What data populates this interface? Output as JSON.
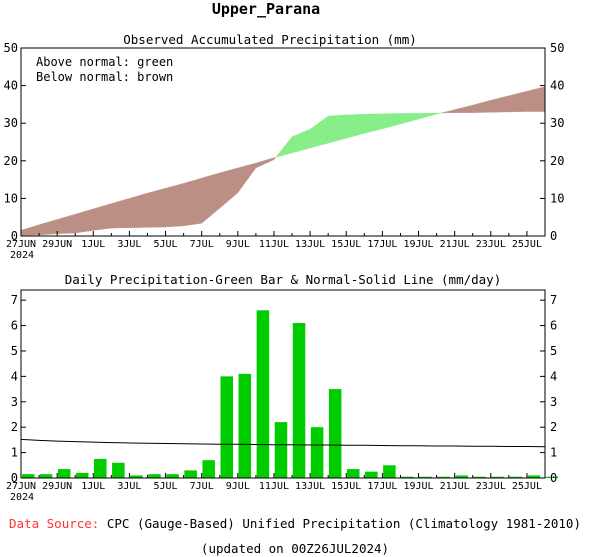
{
  "page": {
    "title": "Upper_Parana",
    "footer_source_label": "Data Source:",
    "footer_source_text": "CPC (Gauge-Based) Unified Precipitation (Climatology 1981-2010)",
    "footer_updated": "(updated on 00Z26JUL2024)"
  },
  "colors": {
    "above_normal": "#88ee88",
    "below_normal": "#bc8f84",
    "bars": "#00cc00",
    "source_label": "#ff3333"
  },
  "chart_data": [
    {
      "type": "area",
      "title": "Observed Accumulated Precipitation (mm)",
      "legend": [
        "Above normal: green",
        "Below normal: brown"
      ],
      "legend_placement": "top-left",
      "x_tick_labels": [
        "27JUN",
        "29JUN",
        "1JUL",
        "3JUL",
        "5JUL",
        "7JUL",
        "9JUL",
        "11JUL",
        "13JUL",
        "15JUL",
        "17JUL",
        "19JUL",
        "21JUL",
        "23JUL",
        "25JUL"
      ],
      "x_year_label": "2024",
      "ylim": [
        0,
        50
      ],
      "y_ticks": [
        0,
        10,
        20,
        30,
        40,
        50
      ],
      "dates": [
        "27JUN",
        "28JUN",
        "29JUN",
        "30JUN",
        "1JUL",
        "2JUL",
        "3JUL",
        "4JUL",
        "5JUL",
        "6JUL",
        "7JUL",
        "8JUL",
        "9JUL",
        "10JUL",
        "11JUL",
        "12JUL",
        "13JUL",
        "14JUL",
        "15JUL",
        "16JUL",
        "17JUL",
        "18JUL",
        "19JUL",
        "20JUL",
        "21JUL",
        "22JUL",
        "23JUL",
        "24JUL",
        "25JUL",
        "26JUL"
      ],
      "series": [
        {
          "name": "Observed",
          "values": [
            0.2,
            0.3,
            0.6,
            0.8,
            1.5,
            2.1,
            2.2,
            2.3,
            2.4,
            2.7,
            3.4,
            7.4,
            11.5,
            18.1,
            20.3,
            26.4,
            28.4,
            31.9,
            32.2,
            32.4,
            32.5,
            32.6,
            32.6,
            32.7,
            32.8,
            32.8,
            32.9,
            33.0,
            33.1,
            33.1
          ]
        },
        {
          "name": "Normal",
          "values": [
            1.5,
            3.0,
            4.4,
            5.8,
            7.2,
            8.6,
            10.0,
            11.4,
            12.7,
            14.0,
            15.4,
            16.8,
            18.1,
            19.4,
            20.8,
            22.1,
            23.4,
            24.7,
            26.0,
            27.3,
            28.5,
            29.8,
            31.1,
            32.4,
            33.6,
            34.8,
            36.1,
            37.3,
            38.5,
            39.7
          ]
        }
      ]
    },
    {
      "type": "bar",
      "title": "Daily Precipitation-Green Bar & Normal-Solid Line (mm/day)",
      "x_tick_labels": [
        "27JUN",
        "29JUN",
        "1JUL",
        "3JUL",
        "5JUL",
        "7JUL",
        "9JUL",
        "11JUL",
        "13JUL",
        "15JUL",
        "17JUL",
        "19JUL",
        "21JUL",
        "23JUL",
        "25JUL"
      ],
      "x_year_label": "2024",
      "ylim": [
        0,
        7.4
      ],
      "y_ticks": [
        0,
        1,
        2,
        3,
        4,
        5,
        6,
        7
      ],
      "categories": [
        "27JUN",
        "28JUN",
        "29JUN",
        "30JUN",
        "1JUL",
        "2JUL",
        "3JUL",
        "4JUL",
        "5JUL",
        "6JUL",
        "7JUL",
        "8JUL",
        "9JUL",
        "10JUL",
        "11JUL",
        "12JUL",
        "13JUL",
        "14JUL",
        "15JUL",
        "16JUL",
        "17JUL",
        "18JUL",
        "19JUL",
        "20JUL",
        "21JUL",
        "22JUL",
        "23JUL",
        "24JUL",
        "25JUL",
        "26JUL"
      ],
      "series": [
        {
          "name": "Daily Precipitation",
          "values": [
            0.15,
            0.15,
            0.35,
            0.2,
            0.75,
            0.6,
            0.1,
            0.15,
            0.15,
            0.3,
            0.7,
            4.0,
            4.1,
            6.6,
            2.2,
            6.1,
            2.0,
            3.5,
            0.35,
            0.25,
            0.5,
            0.05,
            0.05,
            0.05,
            0.1,
            0.05,
            0.05,
            0.05,
            0.1,
            0.05
          ]
        },
        {
          "name": "Normal",
          "values": [
            1.52,
            1.48,
            1.45,
            1.43,
            1.41,
            1.39,
            1.38,
            1.37,
            1.36,
            1.35,
            1.34,
            1.33,
            1.33,
            1.32,
            1.31,
            1.31,
            1.3,
            1.3,
            1.29,
            1.29,
            1.28,
            1.27,
            1.27,
            1.26,
            1.26,
            1.25,
            1.25,
            1.24,
            1.24,
            1.23
          ]
        }
      ]
    }
  ]
}
